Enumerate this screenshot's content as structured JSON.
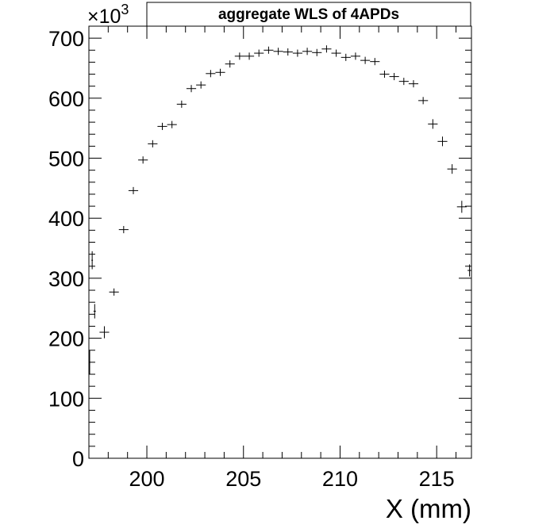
{
  "chart_data": {
    "type": "scatter",
    "title": "aggregate WLS of 4APDs",
    "xlabel": "X (mm)",
    "ylabel": "",
    "y_multiplier_label": "×10",
    "y_multiplier_exponent": "3",
    "xlim": [
      197.0,
      216.8
    ],
    "ylim": [
      0,
      720
    ],
    "x_ticks": [
      200,
      205,
      210,
      215
    ],
    "x_tick_labels": [
      "200",
      "205",
      "210",
      "215"
    ],
    "y_ticks": [
      0,
      100,
      200,
      300,
      400,
      500,
      600,
      700
    ],
    "y_tick_labels": [
      "0",
      "100",
      "200",
      "300",
      "400",
      "500",
      "600",
      "700"
    ],
    "grid": false,
    "series": [
      {
        "x": [
          197.04,
          197.17,
          197.3,
          197.8,
          198.3,
          198.8,
          199.3,
          199.8,
          200.3,
          200.8,
          201.3,
          201.8,
          202.3,
          202.8,
          203.3,
          203.8,
          204.3,
          204.8,
          205.3,
          205.8,
          206.3,
          206.8,
          207.3,
          207.8,
          208.3,
          208.8,
          209.3,
          209.8,
          210.3,
          210.8,
          211.3,
          211.8,
          212.3,
          212.8,
          213.3,
          213.8,
          214.3,
          214.8,
          215.3,
          215.8,
          216.3,
          216.7
        ],
        "y": [
          160,
          330,
          245,
          210,
          277,
          381,
          446,
          497,
          524,
          553,
          556,
          590,
          616,
          622,
          641,
          643,
          657,
          670,
          670,
          675,
          680,
          678,
          677,
          675,
          678,
          676,
          682,
          675,
          668,
          670,
          663,
          661,
          640,
          636,
          628,
          624,
          596,
          557,
          528,
          482,
          419,
          313
        ],
        "yerr": [
          20,
          15,
          12,
          10,
          6,
          6,
          6,
          6,
          6,
          6,
          6,
          6,
          6,
          6,
          6,
          6,
          6,
          6,
          6,
          6,
          6,
          6,
          6,
          6,
          6,
          6,
          6,
          6,
          6,
          6,
          6,
          6,
          6,
          6,
          6,
          6,
          6,
          8,
          8,
          8,
          10,
          10
        ],
        "xerr": [
          0.04,
          0.04,
          0.06,
          0.25,
          0.25,
          0.25,
          0.25,
          0.25,
          0.25,
          0.25,
          0.25,
          0.25,
          0.25,
          0.25,
          0.25,
          0.25,
          0.25,
          0.25,
          0.25,
          0.25,
          0.25,
          0.25,
          0.25,
          0.25,
          0.25,
          0.25,
          0.25,
          0.25,
          0.25,
          0.25,
          0.25,
          0.25,
          0.25,
          0.25,
          0.25,
          0.25,
          0.25,
          0.25,
          0.25,
          0.25,
          0.25,
          0.1
        ],
        "color": "#000000"
      }
    ]
  }
}
